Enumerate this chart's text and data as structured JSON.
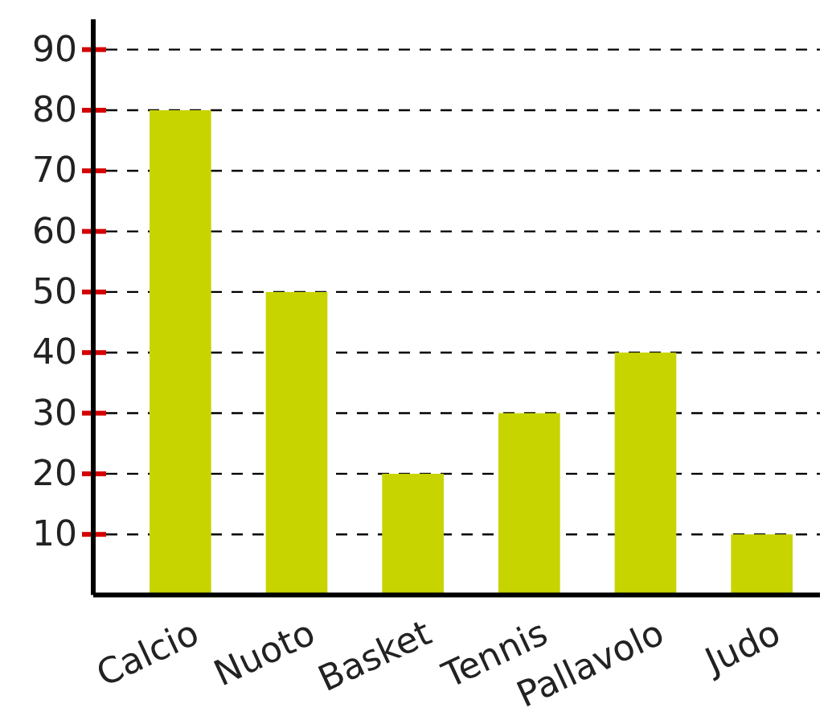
{
  "chart_data": {
    "type": "bar",
    "categories": [
      "Calcio",
      "Nuoto",
      "Basket",
      "Tennis",
      "Pallavolo",
      "Judo"
    ],
    "values": [
      80,
      50,
      20,
      30,
      40,
      10
    ],
    "color": "#c8d400",
    "ylim": [
      0,
      95
    ],
    "yticks": [
      10,
      20,
      30,
      40,
      50,
      60,
      70,
      80,
      90
    ],
    "grid": "y"
  }
}
